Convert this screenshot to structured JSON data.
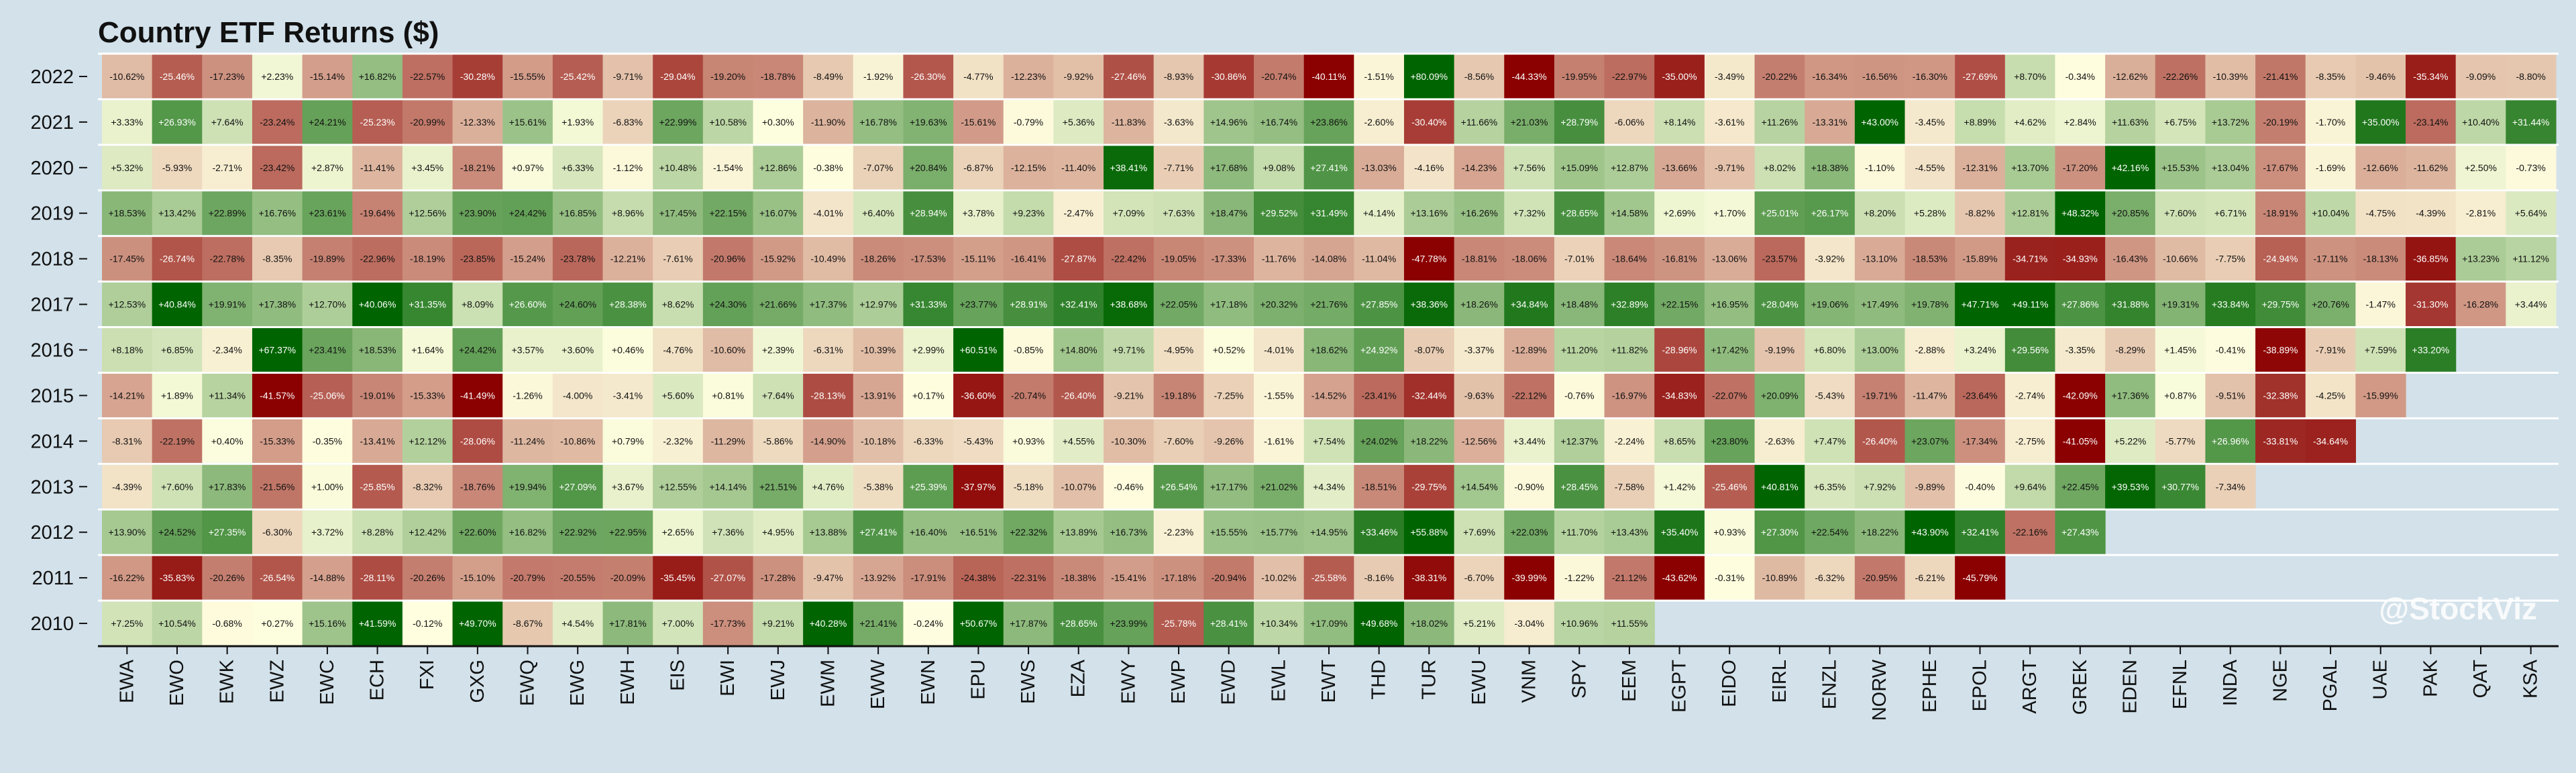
{
  "chart_data": {
    "type": "heatmap",
    "title": "Country ETF Returns ($)",
    "xlabel": "",
    "ylabel": "",
    "watermark": "@StockViz",
    "colors": {
      "negative": "#8b0000",
      "neutral": "#ffffe0",
      "positive": "#006400",
      "grid": "#ffffff",
      "background": "#d2e1ea"
    },
    "color_scale_limit": 40,
    "tickers": [
      "EWA",
      "EWO",
      "EWK",
      "EWZ",
      "EWC",
      "ECH",
      "FXI",
      "GXG",
      "EWQ",
      "EWG",
      "EWH",
      "EIS",
      "EWI",
      "EWJ",
      "EWM",
      "EWW",
      "EWN",
      "EPU",
      "EWS",
      "EZA",
      "EWY",
      "EWP",
      "EWD",
      "EWL",
      "EWT",
      "THD",
      "TUR",
      "EWU",
      "VNM",
      "SPY",
      "EEM",
      "EGPT",
      "EIDO",
      "EIRL",
      "ENZL",
      "NORW",
      "EPHE",
      "EPOL",
      "ARGT",
      "GREK",
      "EDEN",
      "EFNL",
      "INDA",
      "NGE",
      "PGAL",
      "UAE",
      "PAK",
      "QAT",
      "KSA"
    ],
    "years": [
      "2022",
      "2021",
      "2020",
      "2019",
      "2018",
      "2017",
      "2016",
      "2015",
      "2014",
      "2013",
      "2012",
      "2011",
      "2010"
    ],
    "values": {
      "2022": [
        "-10.62%",
        "-25.46%",
        "-17.23%",
        "+2.23%",
        "-15.14%",
        "+16.82%",
        "-22.57%",
        "-30.28%",
        "-15.55%",
        "-25.42%",
        "-9.71%",
        "-29.04%",
        "-19.20%",
        "-18.78%",
        "-8.49%",
        "-1.92%",
        "-26.30%",
        "-4.77%",
        "-12.23%",
        "-9.92%",
        "-27.46%",
        "-8.93%",
        "-30.86%",
        "-20.74%",
        "-40.11%",
        "-1.51%",
        "+80.09%",
        "-8.56%",
        "-44.33%",
        "-19.95%",
        "-22.97%",
        "-35.00%",
        "-3.49%",
        "-20.22%",
        "-16.34%",
        "-16.56%",
        "-16.30%",
        "-27.69%",
        "+8.70%",
        "-0.34%",
        "-12.62%",
        "-22.26%",
        "-10.39%",
        "-21.41%",
        "-8.35%",
        "-9.46%",
        "-35.34%",
        "-9.09%",
        "-8.80%"
      ],
      "2021": [
        "+3.33%",
        "+26.93%",
        "+7.64%",
        "-23.24%",
        "+24.21%",
        "-25.23%",
        "-20.99%",
        "-12.33%",
        "+15.61%",
        "+1.93%",
        "-6.83%",
        "+22.99%",
        "+10.58%",
        "+0.30%",
        "-11.90%",
        "+16.78%",
        "+19.63%",
        "-15.61%",
        "-0.79%",
        "+5.36%",
        "-11.83%",
        "-3.63%",
        "+14.96%",
        "+16.74%",
        "+23.86%",
        "-2.60%",
        "-30.40%",
        "+11.66%",
        "+21.03%",
        "+28.79%",
        "-6.06%",
        "+8.14%",
        "-3.61%",
        "+11.26%",
        "-13.31%",
        "+43.00%",
        "-3.45%",
        "+8.89%",
        "+4.62%",
        "+2.84%",
        "+11.63%",
        "+6.75%",
        "+13.72%",
        "-20.19%",
        "-1.70%",
        "+35.00%",
        "-23.14%",
        "+10.40%",
        "+31.44%"
      ],
      "2020": [
        "+5.32%",
        "-5.93%",
        "-2.71%",
        "-23.42%",
        "+2.87%",
        "-11.41%",
        "+3.45%",
        "-18.21%",
        "+0.97%",
        "+6.33%",
        "-1.12%",
        "+10.48%",
        "-1.54%",
        "+12.86%",
        "-0.38%",
        "-7.07%",
        "+20.84%",
        "-6.87%",
        "-12.15%",
        "-11.40%",
        "+38.41%",
        "-7.71%",
        "+17.68%",
        "+9.08%",
        "+27.41%",
        "-13.03%",
        "-4.16%",
        "-14.23%",
        "+7.56%",
        "+15.09%",
        "+12.87%",
        "-13.66%",
        "-9.71%",
        "+8.02%",
        "+18.38%",
        "-1.10%",
        "-4.55%",
        "-12.31%",
        "+13.70%",
        "-17.20%",
        "+42.16%",
        "+15.53%",
        "+13.04%",
        "-17.67%",
        "-1.69%",
        "-12.66%",
        "-11.62%",
        "+2.50%",
        "-0.73%"
      ],
      "2019": [
        "+18.53%",
        "+13.42%",
        "+22.89%",
        "+16.76%",
        "+23.61%",
        "-19.64%",
        "+12.56%",
        "+23.90%",
        "+24.42%",
        "+16.85%",
        "+8.96%",
        "+17.45%",
        "+22.15%",
        "+16.07%",
        "-4.01%",
        "+6.40%",
        "+28.94%",
        "+3.78%",
        "+9.23%",
        "-2.47%",
        "+7.09%",
        "+7.63%",
        "+18.47%",
        "+29.52%",
        "+31.49%",
        "+4.14%",
        "+13.16%",
        "+16.26%",
        "+7.32%",
        "+28.65%",
        "+14.58%",
        "+2.69%",
        "+1.70%",
        "+25.01%",
        "+26.17%",
        "+8.20%",
        "+5.28%",
        "-8.82%",
        "+12.81%",
        "+48.32%",
        "+20.85%",
        "+7.60%",
        "+6.71%",
        "-18.91%",
        "+10.04%",
        "-4.75%",
        "-4.39%",
        "-2.81%",
        "+5.64%"
      ],
      "2018": [
        "-17.45%",
        "-26.74%",
        "-22.78%",
        "-8.35%",
        "-19.89%",
        "-22.96%",
        "-18.19%",
        "-23.85%",
        "-15.24%",
        "-23.78%",
        "-12.21%",
        "-7.61%",
        "-20.96%",
        "-15.92%",
        "-10.49%",
        "-18.26%",
        "-17.53%",
        "-15.11%",
        "-16.41%",
        "-27.87%",
        "-22.42%",
        "-19.05%",
        "-17.33%",
        "-11.76%",
        "-14.08%",
        "-11.04%",
        "-47.78%",
        "-18.81%",
        "-18.06%",
        "-7.01%",
        "-18.64%",
        "-16.81%",
        "-13.06%",
        "-23.57%",
        "-3.92%",
        "-13.10%",
        "-18.53%",
        "-15.89%",
        "-34.71%",
        "-34.93%",
        "-16.43%",
        "-10.66%",
        "-7.75%",
        "-24.94%",
        "-17.11%",
        "-18.13%",
        "-36.85%",
        "+13.23%",
        "+11.12%"
      ],
      "2017": [
        "+12.53%",
        "+40.84%",
        "+19.91%",
        "+17.38%",
        "+12.70%",
        "+40.06%",
        "+31.35%",
        "+8.09%",
        "+26.60%",
        "+24.60%",
        "+28.38%",
        "+8.62%",
        "+24.30%",
        "+21.66%",
        "+17.37%",
        "+12.97%",
        "+31.33%",
        "+23.77%",
        "+28.91%",
        "+32.41%",
        "+38.68%",
        "+22.05%",
        "+17.18%",
        "+20.32%",
        "+21.76%",
        "+27.85%",
        "+38.36%",
        "+18.26%",
        "+34.84%",
        "+18.48%",
        "+32.89%",
        "+22.15%",
        "+16.95%",
        "+28.04%",
        "+19.06%",
        "+17.49%",
        "+19.78%",
        "+47.71%",
        "+49.11%",
        "+27.86%",
        "+31.88%",
        "+19.31%",
        "+33.84%",
        "+29.75%",
        "+20.76%",
        "-1.47%",
        "-31.30%",
        "-16.28%",
        "+3.44%"
      ],
      "2016": [
        "+8.18%",
        "+6.85%",
        "-2.34%",
        "+67.37%",
        "+23.41%",
        "+18.53%",
        "+1.64%",
        "+24.42%",
        "+3.57%",
        "+3.60%",
        "+0.46%",
        "-4.76%",
        "-10.60%",
        "+2.39%",
        "-6.31%",
        "-10.39%",
        "+2.99%",
        "+60.51%",
        "-0.85%",
        "+14.80%",
        "+9.71%",
        "-4.95%",
        "+0.52%",
        "-4.01%",
        "+18.62%",
        "+24.92%",
        "-8.07%",
        "-3.37%",
        "-12.89%",
        "+11.20%",
        "+11.82%",
        "-28.96%",
        "+17.42%",
        "-9.19%",
        "+6.80%",
        "+13.00%",
        "-2.88%",
        "+3.24%",
        "+29.56%",
        "-3.35%",
        "-8.29%",
        "+1.45%",
        "-0.41%",
        "-38.89%",
        "-7.91%",
        "+7.59%",
        "+33.20%"
      ],
      "2015": [
        "-14.21%",
        "+1.89%",
        "+11.34%",
        "-41.57%",
        "-25.06%",
        "-19.01%",
        "-15.33%",
        "-41.49%",
        "-1.26%",
        "-4.00%",
        "-3.41%",
        "+5.60%",
        "+0.81%",
        "+7.64%",
        "-28.13%",
        "-13.91%",
        "+0.17%",
        "-36.60%",
        "-20.74%",
        "-26.40%",
        "-9.21%",
        "-19.18%",
        "-7.25%",
        "-1.55%",
        "-14.52%",
        "-23.41%",
        "-32.44%",
        "-9.63%",
        "-22.12%",
        "-0.76%",
        "-16.97%",
        "-34.83%",
        "-22.07%",
        "+20.09%",
        "-5.43%",
        "-19.71%",
        "-11.47%",
        "-23.64%",
        "-2.74%",
        "-42.09%",
        "+17.36%",
        "+0.87%",
        "-9.51%",
        "-32.38%",
        "-4.25%",
        "-15.99%"
      ],
      "2014": [
        "-8.31%",
        "-22.19%",
        "+0.40%",
        "-15.33%",
        "-0.35%",
        "-13.41%",
        "+12.12%",
        "-28.06%",
        "-11.24%",
        "-10.86%",
        "+0.79%",
        "-2.32%",
        "-11.29%",
        "-5.86%",
        "-14.90%",
        "-10.18%",
        "-6.33%",
        "-5.43%",
        "+0.93%",
        "+4.55%",
        "-10.30%",
        "-7.60%",
        "-9.26%",
        "-1.61%",
        "+7.54%",
        "+24.02%",
        "+18.22%",
        "-12.56%",
        "+3.44%",
        "+12.37%",
        "-2.24%",
        "+8.65%",
        "+23.80%",
        "-2.63%",
        "+7.47%",
        "-26.40%",
        "+23.07%",
        "-17.34%",
        "-2.75%",
        "-41.05%",
        "+5.22%",
        "-5.77%",
        "+26.96%",
        "-33.81%",
        "-34.64%"
      ],
      "2013": [
        "-4.39%",
        "+7.60%",
        "+17.83%",
        "-21.56%",
        "+1.00%",
        "-25.85%",
        "-8.32%",
        "-18.76%",
        "+19.94%",
        "+27.09%",
        "+3.67%",
        "+12.55%",
        "+14.14%",
        "+21.51%",
        "+4.76%",
        "-5.38%",
        "+25.39%",
        "-37.97%",
        "-5.18%",
        "-10.07%",
        "-0.46%",
        "+26.54%",
        "+17.17%",
        "+21.02%",
        "+4.34%",
        "-18.51%",
        "-29.75%",
        "+14.54%",
        "-0.90%",
        "+28.45%",
        "-7.58%",
        "+1.42%",
        "-25.46%",
        "+40.81%",
        "+6.35%",
        "+7.92%",
        "-9.89%",
        "-0.40%",
        "+9.64%",
        "+22.45%",
        "+39.53%",
        "+30.77%",
        "-7.34%"
      ],
      "2012": [
        "+13.90%",
        "+24.52%",
        "+27.35%",
        "-6.30%",
        "+3.72%",
        "+8.28%",
        "+12.42%",
        "+22.60%",
        "+16.82%",
        "+22.92%",
        "+22.95%",
        "+2.65%",
        "+7.36%",
        "+4.95%",
        "+13.88%",
        "+27.41%",
        "+16.40%",
        "+16.51%",
        "+22.32%",
        "+13.89%",
        "+16.73%",
        "-2.23%",
        "+15.55%",
        "+15.77%",
        "+14.95%",
        "+33.46%",
        "+55.88%",
        "+7.69%",
        "+22.03%",
        "+11.70%",
        "+13.43%",
        "+35.40%",
        "+0.93%",
        "+27.30%",
        "+22.54%",
        "+18.22%",
        "+43.90%",
        "+32.41%",
        "-22.16%",
        "+27.43%"
      ],
      "2011": [
        "-16.22%",
        "-35.83%",
        "-20.26%",
        "-26.54%",
        "-14.88%",
        "-28.11%",
        "-20.26%",
        "-15.10%",
        "-20.79%",
        "-20.55%",
        "-20.09%",
        "-35.45%",
        "-27.07%",
        "-17.28%",
        "-9.47%",
        "-13.92%",
        "-17.91%",
        "-24.38%",
        "-22.31%",
        "-18.38%",
        "-15.41%",
        "-17.18%",
        "-20.94%",
        "-10.02%",
        "-25.58%",
        "-8.16%",
        "-38.31%",
        "-6.70%",
        "-39.99%",
        "-1.22%",
        "-21.12%",
        "-43.62%",
        "-0.31%",
        "-10.89%",
        "-6.32%",
        "-20.95%",
        "-6.21%",
        "-45.79%"
      ],
      "2010": [
        "+7.25%",
        "+10.54%",
        "-0.68%",
        "+0.27%",
        "+15.16%",
        "+41.59%",
        "-0.12%",
        "+49.70%",
        "-8.67%",
        "+4.54%",
        "+17.81%",
        "+7.00%",
        "-17.73%",
        "+9.21%",
        "+40.28%",
        "+21.41%",
        "-0.24%",
        "+50.67%",
        "+17.87%",
        "+28.65%",
        "+23.99%",
        "-25.78%",
        "+28.41%",
        "+10.34%",
        "+17.09%",
        "+49.68%",
        "+18.02%",
        "+5.21%",
        "-3.04%",
        "+10.96%",
        "+11.55%"
      ]
    }
  }
}
